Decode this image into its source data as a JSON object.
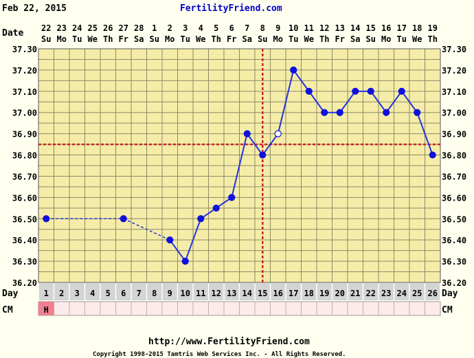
{
  "header": {
    "date": "Feb 22, 2015",
    "site": "FertilityFriend.com"
  },
  "footer": {
    "url": "http://www.FertilityFriend.com",
    "copyright": "Copyright 1998-2015 Tamtris Web Services Inc. - All Rights Reserved."
  },
  "chart_data": {
    "type": "line",
    "row_labels": {
      "date": "Date",
      "day": "Day",
      "cm": "CM"
    },
    "dates": [
      "22",
      "23",
      "24",
      "25",
      "26",
      "27",
      "28",
      "1",
      "2",
      "3",
      "4",
      "5",
      "6",
      "7",
      "8",
      "9",
      "10",
      "11",
      "12",
      "13",
      "14",
      "15",
      "16",
      "17",
      "18",
      "19"
    ],
    "weekdays": [
      "Su",
      "Mo",
      "Tu",
      "We",
      "Th",
      "Fr",
      "Sa",
      "Su",
      "Mo",
      "Tu",
      "We",
      "Th",
      "Fr",
      "Sa",
      "Su",
      "Mo",
      "Tu",
      "We",
      "Th",
      "Fr",
      "Sa",
      "Su",
      "Mo",
      "Tu",
      "We",
      "Th"
    ],
    "days": [
      "1",
      "2",
      "3",
      "4",
      "5",
      "6",
      "7",
      "8",
      "9",
      "10",
      "11",
      "12",
      "13",
      "14",
      "15",
      "16",
      "17",
      "18",
      "19",
      "20",
      "21",
      "22",
      "23",
      "24",
      "25",
      "26"
    ],
    "cm": [
      "H",
      "",
      "",
      "",
      "",
      "",
      "",
      "",
      "",
      "",
      "",
      "",
      "",
      "",
      "",
      "",
      "",
      "",
      "",
      "",
      "",
      "",
      "",
      "",
      "",
      ""
    ],
    "y_ticks": [
      "37.30",
      "37.20",
      "37.10",
      "37.00",
      "36.90",
      "36.80",
      "36.70",
      "36.60",
      "36.50",
      "36.40",
      "36.30",
      "36.20"
    ],
    "ylim": [
      36.2,
      37.3
    ],
    "temps": [
      {
        "day": 1,
        "temp": 36.5
      },
      {
        "day": 6,
        "temp": 36.5
      },
      {
        "day": 9,
        "temp": 36.4
      },
      {
        "day": 10,
        "temp": 36.3
      },
      {
        "day": 11,
        "temp": 36.5
      },
      {
        "day": 12,
        "temp": 36.55
      },
      {
        "day": 13,
        "temp": 36.6
      },
      {
        "day": 14,
        "temp": 36.9
      },
      {
        "day": 15,
        "temp": 36.8
      },
      {
        "day": 16,
        "temp": 36.9,
        "open": true
      },
      {
        "day": 17,
        "temp": 37.2
      },
      {
        "day": 18,
        "temp": 37.1
      },
      {
        "day": 19,
        "temp": 37.0
      },
      {
        "day": 20,
        "temp": 37.0
      },
      {
        "day": 21,
        "temp": 37.1
      },
      {
        "day": 22,
        "temp": 37.1
      },
      {
        "day": 23,
        "temp": 37.0
      },
      {
        "day": 24,
        "temp": 37.1
      },
      {
        "day": 25,
        "temp": 37.0
      },
      {
        "day": 26,
        "temp": 36.8
      }
    ],
    "gap_days": [
      2,
      3,
      4,
      5,
      7,
      8
    ],
    "coverline": 36.85,
    "ovulation_day": 15,
    "colors": {
      "grid_bg": "#f5eca8",
      "grid_line": "#8a8a66",
      "line": "#2233dd",
      "point": "#1111dd",
      "marker": "#cc2222",
      "day_row_bg": "#d4d4d4",
      "cm_h": "#f08090",
      "cm_bg": "#fdeaea"
    }
  }
}
